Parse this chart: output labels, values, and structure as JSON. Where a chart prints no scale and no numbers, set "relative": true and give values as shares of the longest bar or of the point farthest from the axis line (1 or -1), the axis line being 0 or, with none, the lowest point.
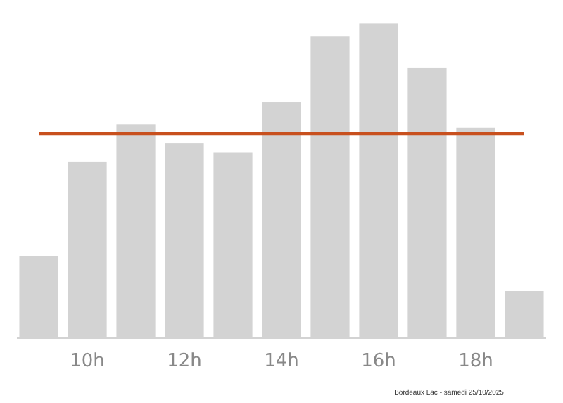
{
  "chart_data": {
    "type": "bar",
    "relative": true,
    "categories": [
      null,
      "10h",
      null,
      "12h",
      null,
      "14h",
      null,
      "16h",
      null,
      "18h",
      null
    ],
    "values": [
      0.26,
      0.56,
      0.68,
      0.62,
      0.59,
      0.75,
      0.96,
      1,
      0.86,
      0.67,
      0.15
    ],
    "color": "#d3d3d3",
    "tick_labels": "x",
    "ref_lines": [
      {
        "axis": "y",
        "value": 0.65,
        "color": "#c8501e"
      }
    ],
    "annotations": [
      "Bordeaux Lac - samedi 25/10/2025"
    ]
  }
}
